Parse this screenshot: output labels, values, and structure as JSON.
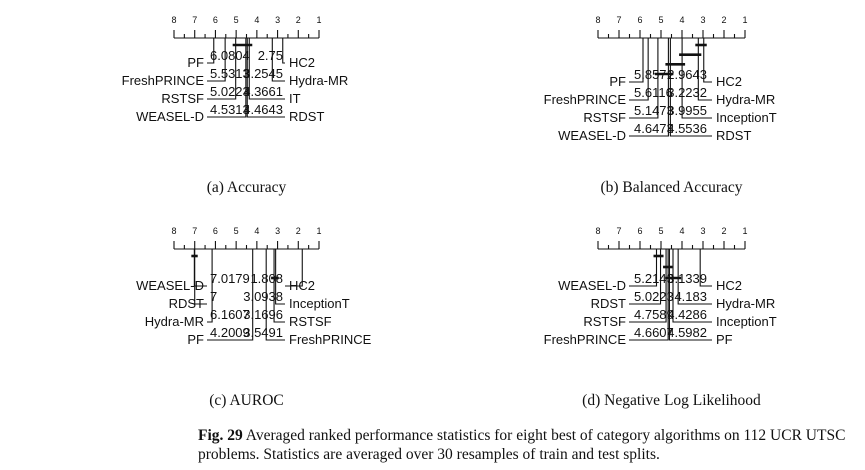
{
  "panels": [
    {
      "id": "a",
      "caption": "(a) Accuracy",
      "ticks": [
        8,
        7,
        6,
        5,
        4,
        3,
        2,
        1
      ],
      "left": [
        {
          "name": "PF",
          "rank": "6.0804"
        },
        {
          "name": "FreshPRINCE",
          "rank": "5.5313"
        },
        {
          "name": "RSTSF",
          "rank": "5.0223"
        },
        {
          "name": "WEASEL-D",
          "rank": "4.5313"
        }
      ],
      "right": [
        {
          "name": "HC2",
          "rank": "2.75"
        },
        {
          "name": "Hydra-MR",
          "rank": "3.2545"
        },
        {
          "name": "IT",
          "rank": "4.3661"
        },
        {
          "name": "RDST",
          "rank": "4.4643"
        }
      ],
      "cliques": [
        [
          4.3661,
          5.0223
        ]
      ]
    },
    {
      "id": "b",
      "caption": "(b) Balanced Accuracy",
      "ticks": [
        8,
        7,
        6,
        5,
        4,
        3,
        2,
        1
      ],
      "left": [
        {
          "name": "PF",
          "rank": "5.8571"
        },
        {
          "name": "FreshPRINCE",
          "rank": "5.6116"
        },
        {
          "name": "RSTSF",
          "rank": "5.1473"
        },
        {
          "name": "WEASEL-D",
          "rank": "4.6473"
        }
      ],
      "right": [
        {
          "name": "HC2",
          "rank": "2.9643"
        },
        {
          "name": "Hydra-MR",
          "rank": "3.2232"
        },
        {
          "name": "InceptionT",
          "rank": "3.9955"
        },
        {
          "name": "RDST",
          "rank": "4.5536"
        }
      ],
      "cliques": [
        [
          2.9643,
          3.2232
        ],
        [
          3.2232,
          3.9955
        ],
        [
          3.9955,
          4.6473
        ],
        [
          4.5536,
          5.1473
        ]
      ]
    },
    {
      "id": "c",
      "caption": "(c) AUROC",
      "ticks": [
        8,
        7,
        6,
        5,
        4,
        3,
        2,
        1
      ],
      "left": [
        {
          "name": "WEASEL-D",
          "rank": "7.0179"
        },
        {
          "name": "RDST",
          "rank": "7"
        },
        {
          "name": "Hydra-MR",
          "rank": "6.1607"
        },
        {
          "name": "PF",
          "rank": "4.2009"
        }
      ],
      "right": [
        {
          "name": "HC2",
          "rank": "1.808"
        },
        {
          "name": "InceptionT",
          "rank": "3.0938"
        },
        {
          "name": "RSTSF",
          "rank": "3.1696"
        },
        {
          "name": "FreshPRINCE",
          "rank": "3.5491"
        }
      ],
      "cliques": [
        [
          7.0,
          7.0179
        ],
        [
          3.0938,
          3.1696
        ]
      ]
    },
    {
      "id": "d",
      "caption": "(d) Negative Log Likelihood",
      "ticks": [
        8,
        7,
        6,
        5,
        4,
        3,
        2,
        1
      ],
      "left": [
        {
          "name": "WEASEL-D",
          "rank": "5.2143"
        },
        {
          "name": "RDST",
          "rank": "5.0223"
        },
        {
          "name": "RSTSF",
          "rank": "4.7589"
        },
        {
          "name": "FreshPRINCE",
          "rank": "4.6607"
        }
      ],
      "right": [
        {
          "name": "HC2",
          "rank": "3.1339"
        },
        {
          "name": "Hydra-MR",
          "rank": "4.183"
        },
        {
          "name": "InceptionT",
          "rank": "4.4286"
        },
        {
          "name": "PF",
          "rank": "4.5982"
        }
      ],
      "cliques": [
        [
          5.0223,
          5.2143
        ],
        [
          4.5982,
          4.7589
        ],
        [
          4.183,
          4.6607
        ]
      ]
    }
  ],
  "figure_caption": {
    "label": "Fig. 29",
    "text": " Averaged ranked performance statistics for eight best of category algorithms on 112 UCR UTSC problems. Statistics are averaged over 30 resamples of train and test splits."
  }
}
